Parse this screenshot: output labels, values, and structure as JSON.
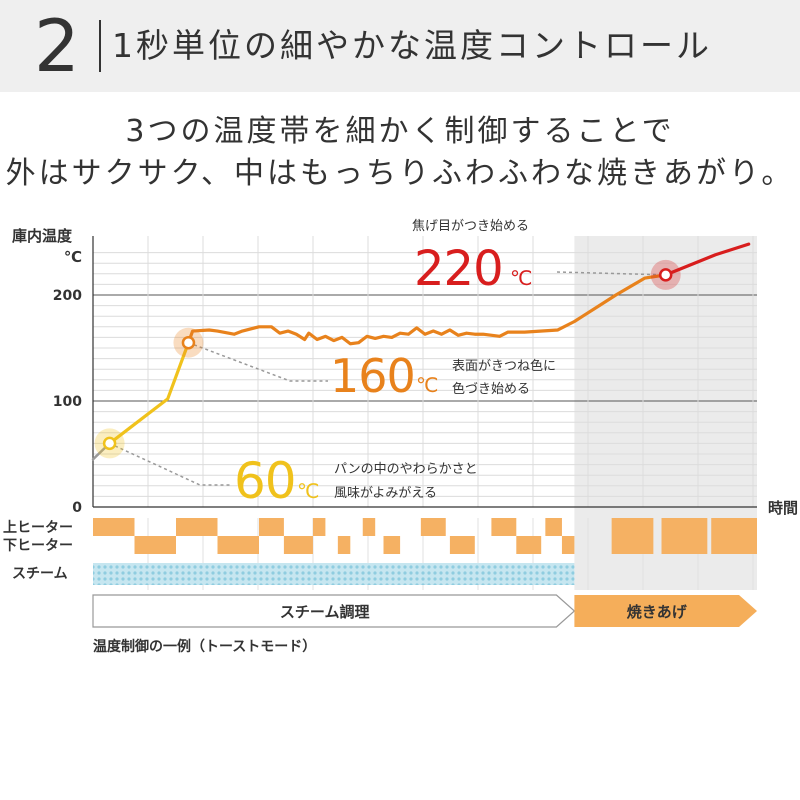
{
  "header": {
    "number": "2",
    "title": "1秒単位の細やかな温度コントロール"
  },
  "lead": {
    "line1": "3つの温度帯を細かく制御することで",
    "line2": "外はサクサク、中はもっちりふわふわな焼きあがり。"
  },
  "chart_data": {
    "type": "line",
    "ylabel": "庫内温度",
    "yunit": "℃",
    "xlabel": "時間",
    "ylim": [
      0,
      255
    ],
    "yticks": [
      0,
      100,
      200
    ],
    "grid": true,
    "x_max": 100,
    "colors": {
      "gray": "#9a9a9a",
      "yellow": "#f0c21c",
      "orange": "#e8821c",
      "red": "#d81e1e",
      "heater": "#f5b163",
      "steam": "#8fcde0",
      "shade": "#ebebeb"
    },
    "series": [
      {
        "color": "gray",
        "points": [
          [
            0,
            45
          ],
          [
            4,
            60
          ]
        ]
      },
      {
        "color": "yellow",
        "points": [
          [
            4,
            60
          ],
          [
            18,
            102
          ],
          [
            23,
            155
          ]
        ]
      },
      {
        "color": "orange",
        "points": [
          [
            23,
            155
          ],
          [
            24,
            166
          ],
          [
            28,
            167
          ],
          [
            30,
            166
          ],
          [
            34,
            163
          ],
          [
            36,
            166
          ],
          [
            40,
            170
          ],
          [
            43,
            170
          ],
          [
            45,
            164
          ],
          [
            47,
            166
          ],
          [
            49,
            163
          ],
          [
            51,
            158
          ],
          [
            52,
            164
          ],
          [
            54,
            158
          ],
          [
            56,
            161
          ],
          [
            58,
            157
          ],
          [
            60,
            160
          ],
          [
            62,
            154
          ],
          [
            64,
            155
          ],
          [
            66,
            161
          ],
          [
            68,
            159
          ],
          [
            70,
            161
          ],
          [
            72,
            160
          ],
          [
            74,
            164
          ],
          [
            76,
            163
          ],
          [
            78,
            169
          ],
          [
            80,
            163
          ],
          [
            82,
            166
          ],
          [
            84,
            163
          ],
          [
            86,
            167
          ],
          [
            88,
            162
          ],
          [
            90,
            164
          ],
          [
            92,
            163
          ],
          [
            94,
            163
          ],
          [
            98,
            161
          ],
          [
            100,
            165
          ],
          [
            104,
            165
          ],
          [
            112,
            167
          ],
          [
            116,
            175
          ],
          [
            118,
            180
          ],
          [
            122,
            190
          ],
          [
            126,
            200
          ],
          [
            133,
            216
          ],
          [
            138,
            219
          ]
        ]
      },
      {
        "color": "red",
        "points": [
          [
            138,
            219
          ],
          [
            150,
            238
          ],
          [
            158,
            248
          ]
        ]
      }
    ],
    "markers": [
      {
        "point": [
          4,
          60
        ],
        "color": "yellow"
      },
      {
        "point": [
          23,
          155
        ],
        "color": "orange"
      },
      {
        "point": [
          138,
          219
        ],
        "color": "red"
      }
    ],
    "annotations": [
      {
        "temp_label": "60",
        "unit": "℃",
        "color": "yellow",
        "desc_lines": [
          "パンの中のやわらかさと",
          "風味がよみがえる"
        ]
      },
      {
        "temp_label": "160",
        "unit": "℃",
        "color": "orange",
        "desc_lines": [
          "表面がきつね色に",
          "色づき始める"
        ]
      },
      {
        "temp_label": "220",
        "unit": "℃",
        "color": "red",
        "desc_lines": [
          "焦げ目がつき始める"
        ]
      }
    ],
    "heater_rows": {
      "upper_label": "上ヒーター",
      "lower_label": "下ヒーター",
      "steam_label": "スチーム",
      "upper_on": [
        [
          0,
          10
        ],
        [
          20,
          30
        ],
        [
          40,
          46
        ],
        [
          53,
          56
        ],
        [
          65,
          68
        ],
        [
          79,
          85
        ],
        [
          96,
          102
        ],
        [
          109,
          113
        ],
        [
          125,
          135
        ],
        [
          137,
          148
        ],
        [
          149,
          160
        ]
      ],
      "lower_on": [
        [
          10,
          20
        ],
        [
          30,
          40
        ],
        [
          46,
          53
        ],
        [
          59,
          62
        ],
        [
          70,
          74
        ],
        [
          86,
          92
        ],
        [
          102,
          108
        ],
        [
          113,
          116
        ],
        [
          125,
          135
        ],
        [
          137,
          148
        ],
        [
          149,
          160
        ]
      ],
      "steam_on": [
        [
          0,
          116
        ]
      ]
    },
    "phases": [
      {
        "label": "スチーム調理",
        "start": 0,
        "end": 116,
        "style": "outline"
      },
      {
        "label": "焼きあげ",
        "start": 116,
        "end": 160,
        "style": "filled"
      }
    ],
    "shaded_region": [
      116,
      160
    ],
    "caption": "温度制御の一例（トーストモード）"
  }
}
